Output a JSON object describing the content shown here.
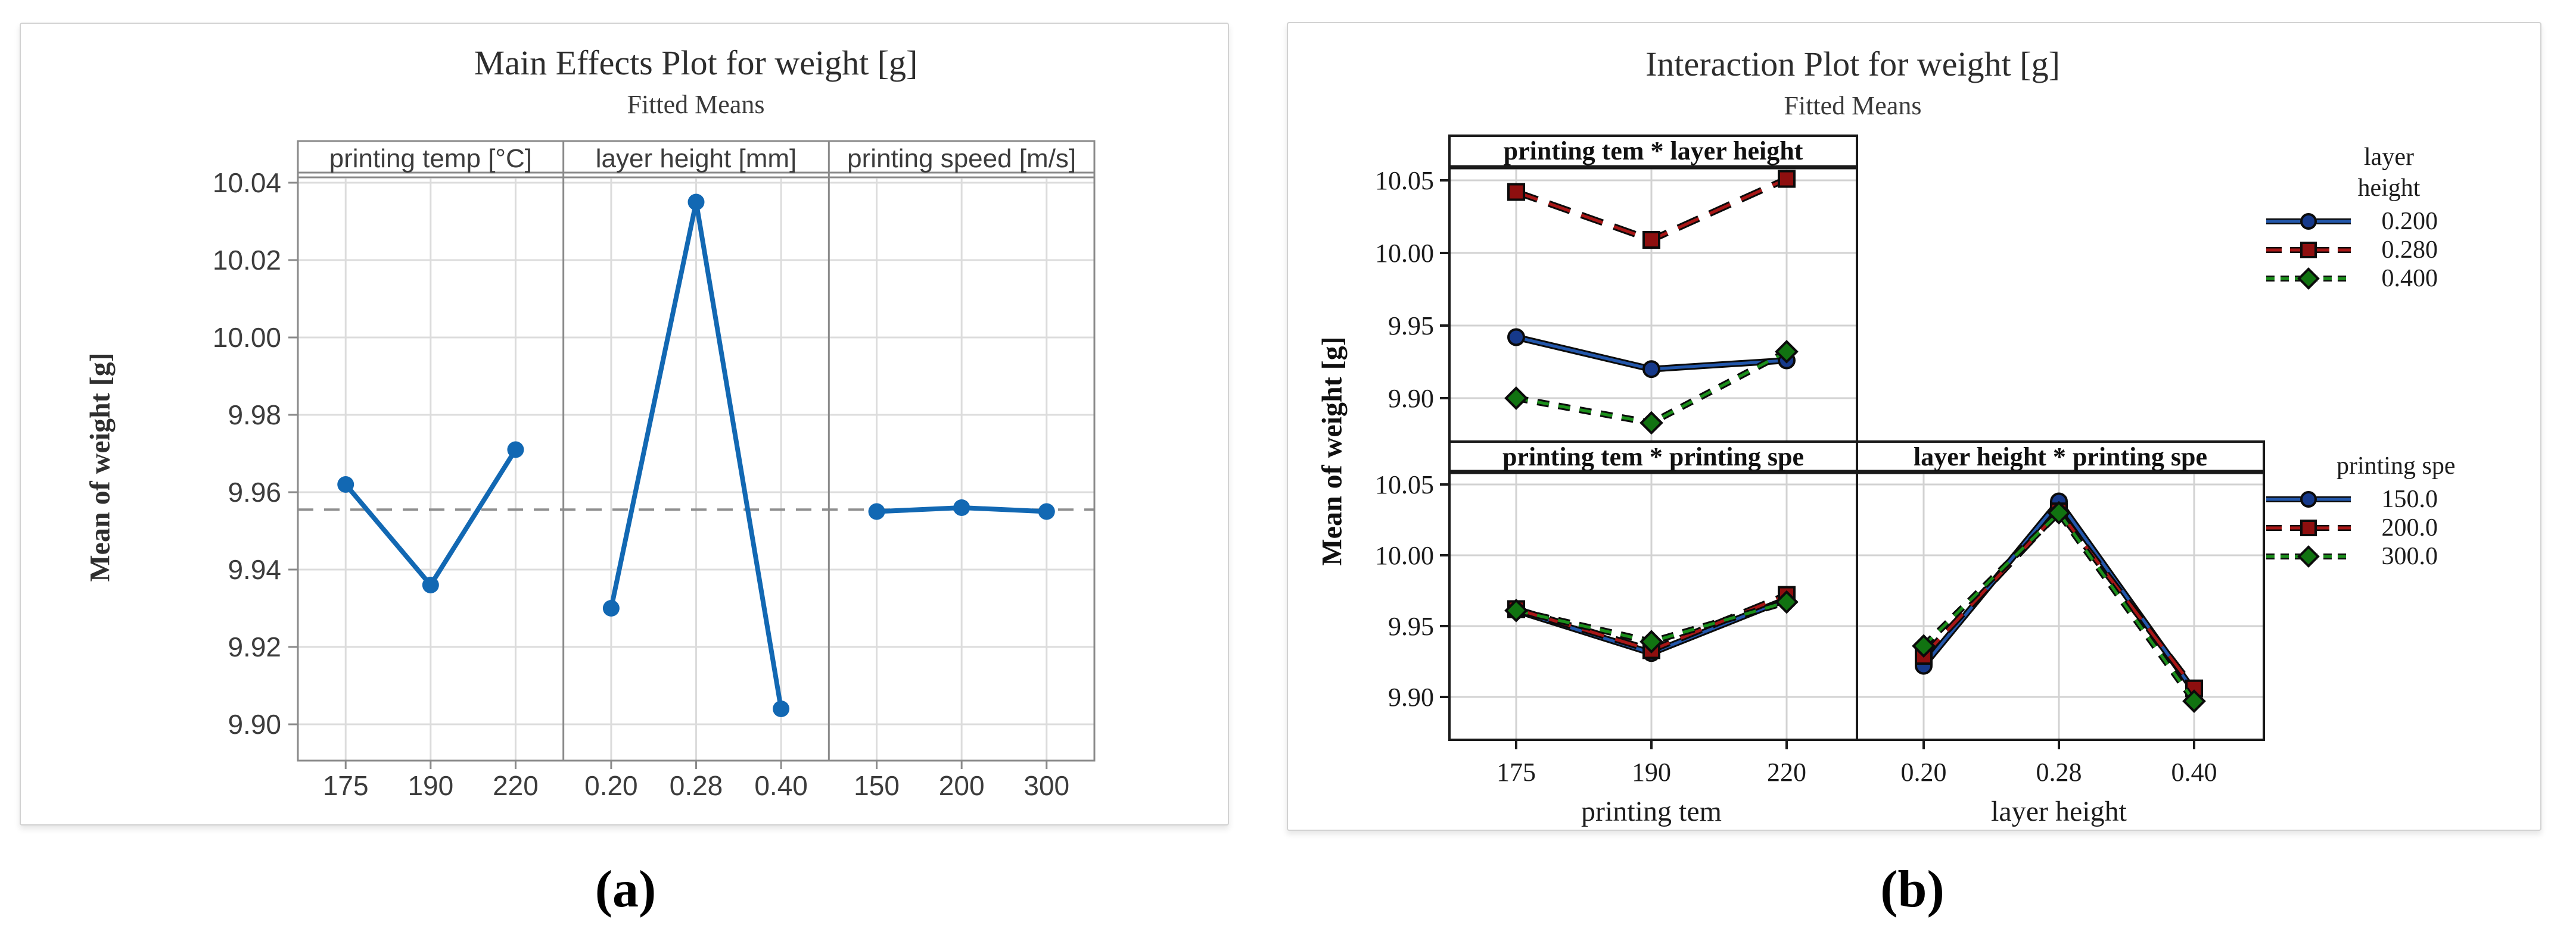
{
  "figure_a": {
    "title": "Main Effects Plot for weight [g]",
    "subtitle": "Fitted Means",
    "ylabel": "Mean of weight [g]",
    "caption": "(a)"
  },
  "figure_b": {
    "title": "Interaction Plot for weight [g]",
    "subtitle": "Fitted Means",
    "ylabel": "Mean of weight [g]",
    "caption": "(b)",
    "xlabels": {
      "left": "printing tem",
      "right": "layer height"
    },
    "legend1_line1": "layer",
    "legend1_line2": "height",
    "legend2_title": "printing spe"
  },
  "chart_data": [
    {
      "id": "main-effects-plot",
      "type": "line",
      "title": "Main Effects Plot for weight [g]",
      "subtitle": "Fitted Means",
      "ylabel": "Mean of weight [g]",
      "yticks": [
        10.04,
        10.02,
        10.0,
        9.98,
        9.96,
        9.94,
        9.92,
        9.9
      ],
      "ylim": [
        9.891,
        10.043
      ],
      "grand_mean": 9.9555,
      "grid": true,
      "line_color": "#1268b3",
      "mean_line_color": "#8f8f8f",
      "panels": [
        {
          "header": "printing temp [°C]",
          "categories": [
            "175",
            "190",
            "220"
          ],
          "values": [
            9.962,
            9.936,
            9.971
          ]
        },
        {
          "header": "layer height [mm]",
          "categories": [
            "0.20",
            "0.28",
            "0.40"
          ],
          "values": [
            9.93,
            10.035,
            9.904
          ]
        },
        {
          "header": "printing speed [m/s]",
          "categories": [
            "150",
            "200",
            "300"
          ],
          "values": [
            9.955,
            9.956,
            9.955
          ]
        }
      ]
    },
    {
      "id": "interaction-plot",
      "type": "line",
      "title": "Interaction Plot for weight [g]",
      "subtitle": "Fitted Means",
      "ylabel": "Mean of weight [g]",
      "yticks": [
        10.05,
        10.0,
        9.95,
        9.9
      ],
      "ylim": [
        9.87,
        10.062
      ],
      "grid": true,
      "legend_position": "right",
      "series_styles": [
        {
          "color": "#2357ab",
          "marker_fill": "#16398a",
          "marker": "circle",
          "dash": "solid"
        },
        {
          "color": "#a81717",
          "marker_fill": "#8e0f0f",
          "marker": "square",
          "dash": "long-dash"
        },
        {
          "color": "#1c8f1c",
          "marker_fill": "#117311",
          "marker": "diamond",
          "dash": "short-dash"
        }
      ],
      "legends": [
        {
          "title": "layer height",
          "entries": [
            "0.200",
            "0.280",
            "0.400"
          ]
        },
        {
          "title": "printing spe",
          "entries": [
            "150.0",
            "200.0",
            "300.0"
          ]
        }
      ],
      "panels": [
        {
          "header": "printing tem * layer height",
          "row": 0,
          "col": 0,
          "categories": [
            "175",
            "190",
            "220"
          ],
          "series": [
            {
              "name": "0.200",
              "values": [
                9.942,
                9.92,
                9.926
              ]
            },
            {
              "name": "0.280",
              "values": [
                10.042,
                10.009,
                10.051
              ]
            },
            {
              "name": "0.400",
              "values": [
                9.9,
                9.883,
                9.932
              ]
            }
          ]
        },
        {
          "header": "printing tem * printing spe",
          "row": 1,
          "col": 0,
          "xlabel": "printing tem",
          "categories": [
            "175",
            "190",
            "220"
          ],
          "series": [
            {
              "name": "150.0",
              "values": [
                9.961,
                9.931,
                9.969
              ]
            },
            {
              "name": "200.0",
              "values": [
                9.962,
                9.933,
                9.972
              ]
            },
            {
              "name": "300.0",
              "values": [
                9.961,
                9.939,
                9.967
              ]
            }
          ]
        },
        {
          "header": "layer height * printing spe",
          "row": 1,
          "col": 1,
          "xlabel": "layer height",
          "categories": [
            "0.20",
            "0.28",
            "0.40"
          ],
          "series": [
            {
              "name": "150.0",
              "values": [
                9.922,
                10.038,
                9.904
              ]
            },
            {
              "name": "200.0",
              "values": [
                9.929,
                10.031,
                9.906
              ]
            },
            {
              "name": "300.0",
              "values": [
                9.936,
                10.03,
                9.897
              ]
            }
          ]
        }
      ]
    }
  ]
}
